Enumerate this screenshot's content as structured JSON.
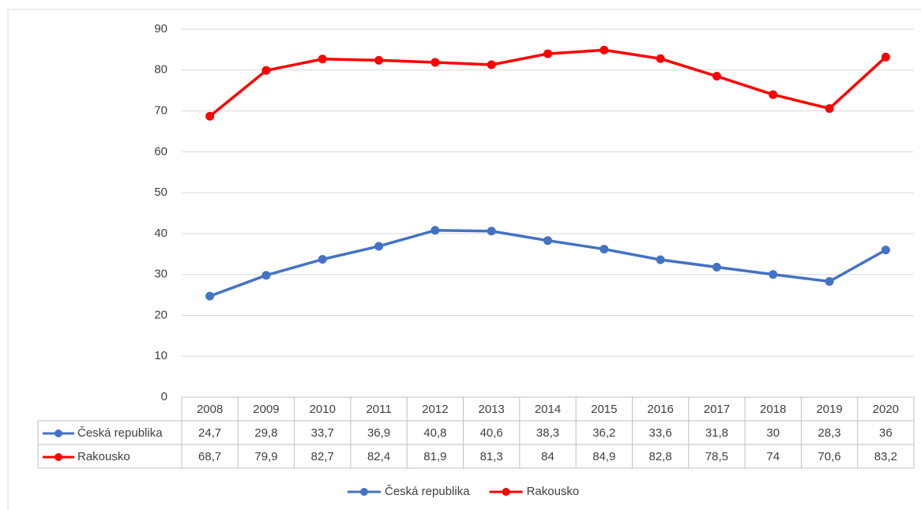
{
  "chart_data": {
    "type": "line",
    "categories": [
      "2008",
      "2009",
      "2010",
      "2011",
      "2012",
      "2013",
      "2014",
      "2015",
      "2016",
      "2017",
      "2018",
      "2019",
      "2020"
    ],
    "series": [
      {
        "name": "Česká republika",
        "color": "#4472c4",
        "values": [
          24.7,
          29.8,
          33.7,
          36.9,
          40.8,
          40.6,
          38.3,
          36.2,
          33.6,
          31.8,
          30,
          28.3,
          36
        ],
        "value_labels": [
          "24,7",
          "29,8",
          "33,7",
          "36,9",
          "40,8",
          "40,6",
          "38,3",
          "36,2",
          "33,6",
          "31,8",
          "30",
          "28,3",
          "36"
        ]
      },
      {
        "name": "Rakousko",
        "color": "#ff0000",
        "values": [
          68.7,
          79.9,
          82.7,
          82.4,
          81.9,
          81.3,
          84,
          84.9,
          82.8,
          78.5,
          74,
          70.6,
          83.2
        ],
        "value_labels": [
          "68,7",
          "79,9",
          "82,7",
          "82,4",
          "81,9",
          "81,3",
          "84",
          "84,9",
          "82,8",
          "78,5",
          "74",
          "70,6",
          "83,2"
        ]
      }
    ],
    "ylim": [
      0,
      90
    ],
    "yticks": [
      0,
      10,
      20,
      30,
      40,
      50,
      60,
      70,
      80,
      90
    ],
    "grid": true,
    "legend": "bottom"
  }
}
